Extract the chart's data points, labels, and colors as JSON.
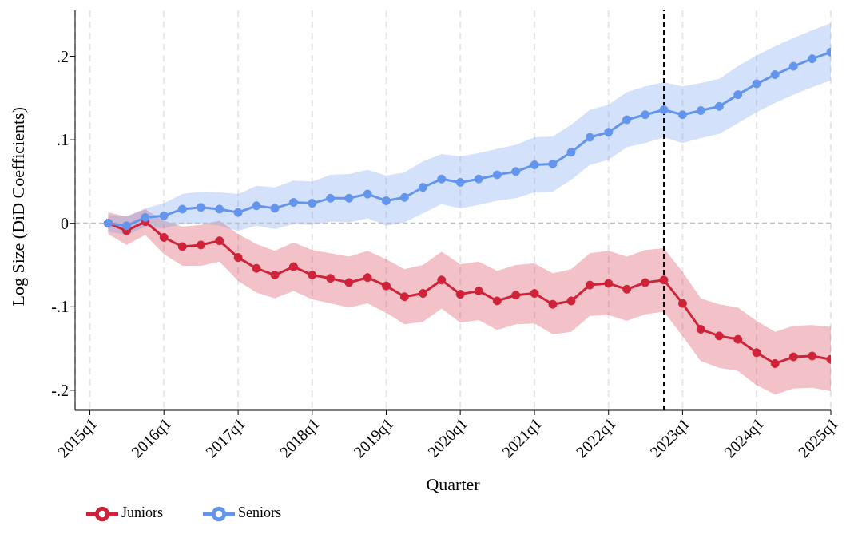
{
  "chart_data": {
    "type": "line",
    "xlabel": "Quarter",
    "ylabel": "Log Size (DiD Coefficients)",
    "x": [
      "2015-04",
      "2015-07",
      "2015-10",
      "2016-01",
      "2016-04",
      "2016-07",
      "2016-10",
      "2017-01",
      "2017-04",
      "2017-07",
      "2017-10",
      "2018-01",
      "2018-04",
      "2018-07",
      "2018-10",
      "2019-01",
      "2019-04",
      "2019-07",
      "2019-10",
      "2020-01",
      "2020-04",
      "2020-07",
      "2020-10",
      "2021-01",
      "2021-04",
      "2021-07",
      "2021-10",
      "2022-01",
      "2022-04",
      "2022-07",
      "2022-10",
      "2023-01",
      "2023-04",
      "2023-07",
      "2023-10",
      "2024-01",
      "2024-04",
      "2024-07",
      "2024-10",
      "2025-01"
    ],
    "series": [
      {
        "name": "Juniors",
        "color": "#d0233a",
        "values": [
          0,
          -0.009,
          0.002,
          -0.017,
          -0.028,
          -0.026,
          -0.021,
          -0.041,
          -0.054,
          -0.062,
          -0.052,
          -0.062,
          -0.066,
          -0.071,
          -0.065,
          -0.075,
          -0.088,
          -0.084,
          -0.068,
          -0.085,
          -0.081,
          -0.093,
          -0.086,
          -0.084,
          -0.097,
          -0.093,
          -0.074,
          -0.072,
          -0.079,
          -0.071,
          -0.068,
          -0.096,
          -0.127,
          -0.135,
          -0.139,
          -0.155,
          -0.168,
          -0.16,
          -0.159,
          -0.163
        ],
        "upper": [
          0.013,
          0.008,
          0.017,
          0.003,
          -0.004,
          -0.002,
          0.003,
          -0.013,
          -0.025,
          -0.033,
          -0.023,
          -0.032,
          -0.036,
          -0.04,
          -0.033,
          -0.043,
          -0.055,
          -0.05,
          -0.034,
          -0.049,
          -0.046,
          -0.057,
          -0.05,
          -0.048,
          -0.06,
          -0.055,
          -0.036,
          -0.033,
          -0.04,
          -0.032,
          -0.03,
          -0.058,
          -0.09,
          -0.097,
          -0.101,
          -0.117,
          -0.13,
          -0.123,
          -0.122,
          -0.124
        ],
        "lower": [
          -0.013,
          -0.026,
          -0.014,
          -0.037,
          -0.051,
          -0.051,
          -0.046,
          -0.069,
          -0.083,
          -0.09,
          -0.081,
          -0.091,
          -0.096,
          -0.101,
          -0.096,
          -0.107,
          -0.121,
          -0.118,
          -0.102,
          -0.119,
          -0.116,
          -0.128,
          -0.121,
          -0.12,
          -0.133,
          -0.13,
          -0.111,
          -0.11,
          -0.117,
          -0.109,
          -0.106,
          -0.135,
          -0.165,
          -0.173,
          -0.177,
          -0.194,
          -0.205,
          -0.198,
          -0.197,
          -0.201
        ]
      },
      {
        "name": "Seniors",
        "color": "#6495ed",
        "values": [
          0,
          -0.003,
          0.007,
          0.009,
          0.017,
          0.019,
          0.017,
          0.013,
          0.021,
          0.018,
          0.025,
          0.024,
          0.03,
          0.03,
          0.035,
          0.027,
          0.031,
          0.043,
          0.053,
          0.049,
          0.053,
          0.058,
          0.062,
          0.07,
          0.071,
          0.085,
          0.103,
          0.109,
          0.124,
          0.13,
          0.136,
          0.13,
          0.135,
          0.14,
          0.154,
          0.167,
          0.178,
          0.188,
          0.197,
          0.205
        ],
        "upper": [
          0.01,
          0.008,
          0.018,
          0.024,
          0.035,
          0.038,
          0.037,
          0.035,
          0.045,
          0.043,
          0.051,
          0.05,
          0.058,
          0.059,
          0.064,
          0.057,
          0.061,
          0.074,
          0.083,
          0.08,
          0.084,
          0.089,
          0.094,
          0.103,
          0.104,
          0.118,
          0.136,
          0.142,
          0.157,
          0.164,
          0.169,
          0.164,
          0.168,
          0.173,
          0.188,
          0.201,
          0.212,
          0.222,
          0.231,
          0.24
        ],
        "lower": [
          -0.01,
          -0.014,
          -0.004,
          -0.006,
          -0.001,
          0,
          -0.003,
          -0.009,
          -0.003,
          -0.007,
          -0.001,
          -0.002,
          0.002,
          0.001,
          0.006,
          -0.003,
          0.001,
          0.012,
          0.023,
          0.018,
          0.022,
          0.027,
          0.03,
          0.037,
          0.038,
          0.052,
          0.07,
          0.076,
          0.091,
          0.096,
          0.103,
          0.096,
          0.102,
          0.107,
          0.12,
          0.133,
          0.144,
          0.154,
          0.163,
          0.171
        ]
      }
    ],
    "xlim": [
      "2014-10-20",
      "2025-01"
    ],
    "xticks": [
      {
        "value": "2015-01",
        "label": "2015q1"
      },
      {
        "value": "2016-01",
        "label": "2016q1"
      },
      {
        "value": "2017-01",
        "label": "2017q1"
      },
      {
        "value": "2018-01",
        "label": "2018q1"
      },
      {
        "value": "2019-01",
        "label": "2019q1"
      },
      {
        "value": "2020-01",
        "label": "2020q1"
      },
      {
        "value": "2021-01",
        "label": "2021q1"
      },
      {
        "value": "2022-01",
        "label": "2022q1"
      },
      {
        "value": "2023-01",
        "label": "2023q1"
      },
      {
        "value": "2024-01",
        "label": "2024q1"
      },
      {
        "value": "2025-01",
        "label": "2025q1"
      }
    ],
    "ylim": [
      -0.224,
      0.255
    ],
    "yticks": [
      {
        "value": -0.2,
        "label": "-.2"
      },
      {
        "value": -0.1,
        "label": "-.1"
      },
      0,
      {
        "value": 0.1,
        "label": ".1"
      },
      {
        "value": 0.2,
        "label": ".2"
      }
    ],
    "ref_lines": [
      {
        "axis": "y",
        "value": 0,
        "color": "#c0c0c0",
        "line_style": "dashed"
      },
      {
        "axis": "x",
        "value": "2022-10",
        "color": "#000000",
        "line_style": "dashed"
      }
    ],
    "grid": "x",
    "legend": "bottom left",
    "marker": "circle",
    "line_style": "solid"
  }
}
